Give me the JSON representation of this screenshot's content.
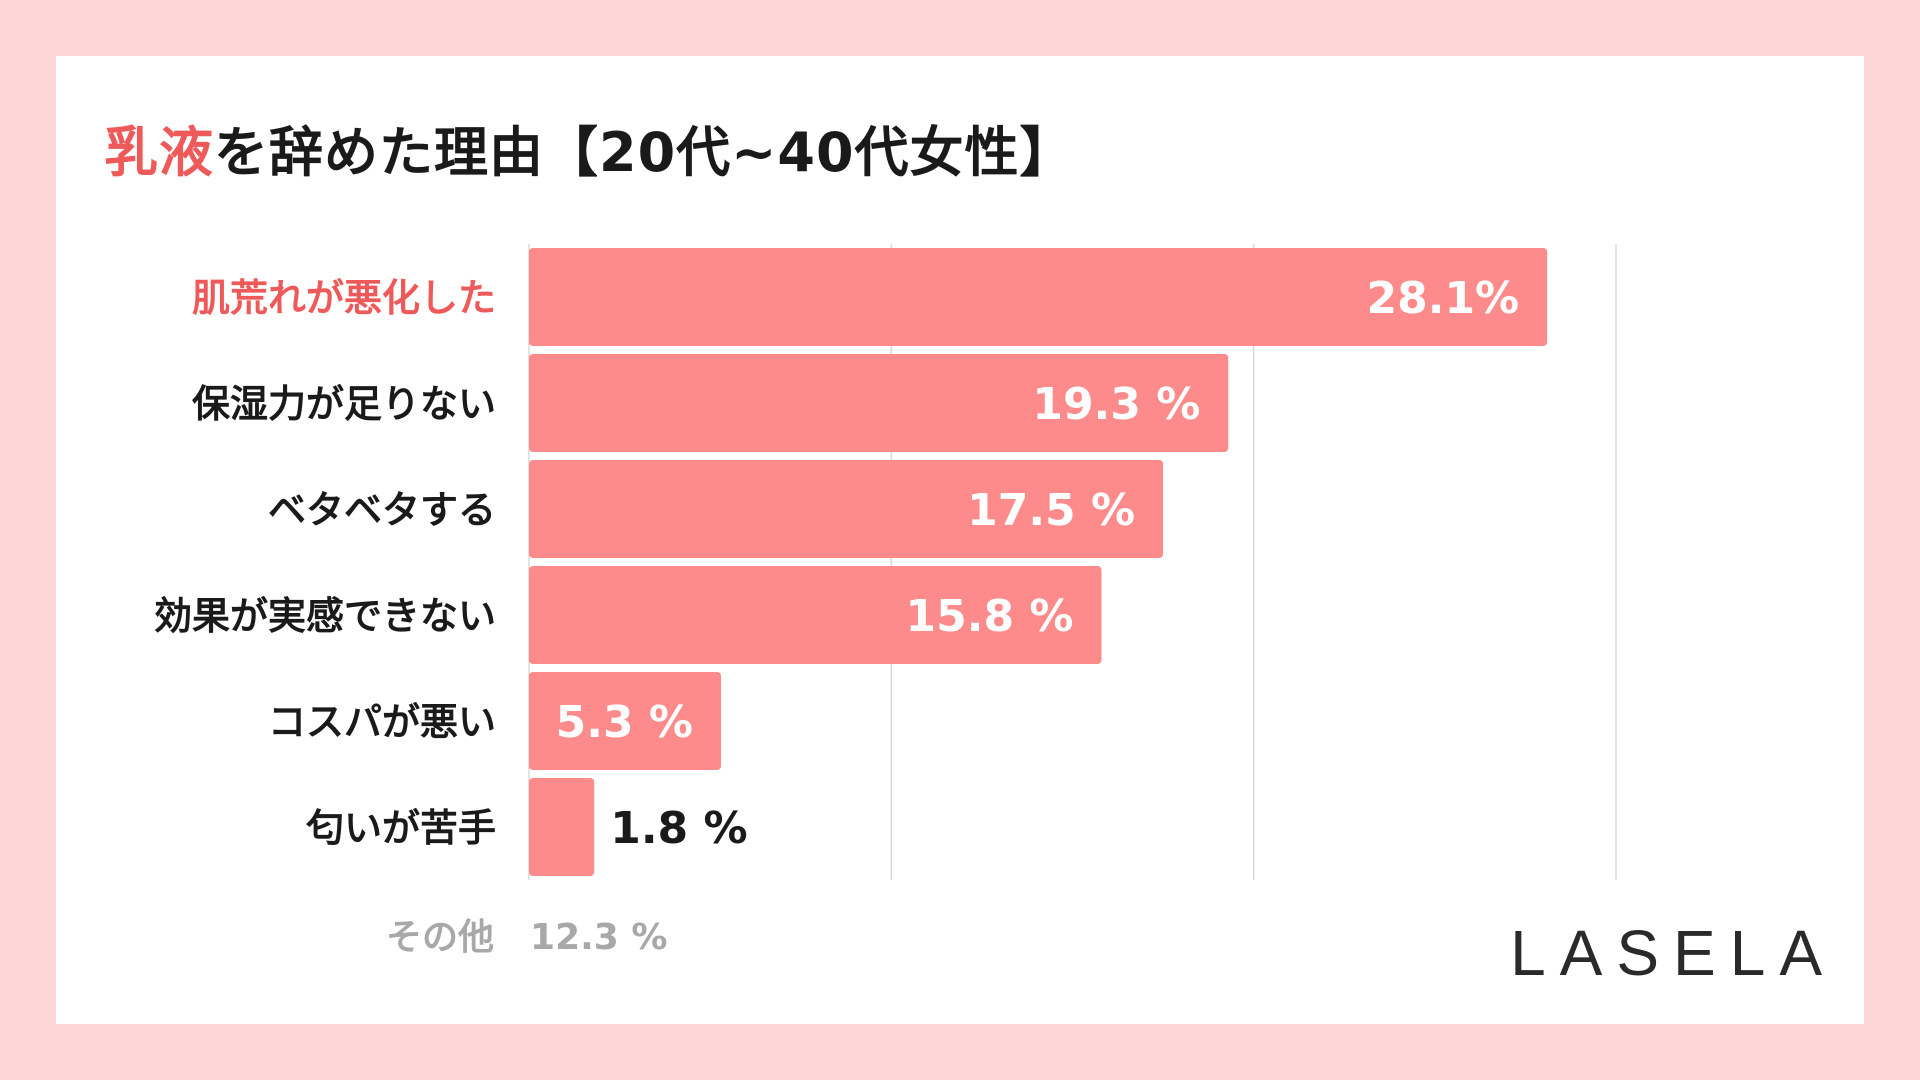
{
  "title": {
    "highlight": "乳液",
    "rest": "を辞めた理由【20代~40代女性】"
  },
  "chart_data": {
    "type": "bar",
    "orientation": "horizontal",
    "categories": [
      "肌荒れが悪化した",
      "保湿力が足りない",
      "ベタベタする",
      "効果が実感できない",
      "コスパが悪い",
      "匂いが苦手"
    ],
    "values": [
      28.1,
      19.3,
      17.5,
      15.8,
      5.3,
      1.8
    ],
    "value_labels": [
      "28.1%",
      "19.3 %",
      "17.5 %",
      "15.8 %",
      "5.3 %",
      "1.8 %"
    ],
    "highlight_index": 0,
    "xlim": [
      0,
      30
    ],
    "gridlines": [
      0,
      10,
      20,
      30
    ],
    "grid": true,
    "bar_color": "#fd8b8b",
    "highlight_label_color": "#ee5a5a"
  },
  "other": {
    "label": "その他",
    "value": "12.3 %"
  },
  "brand": {
    "logo": "LASELA"
  }
}
